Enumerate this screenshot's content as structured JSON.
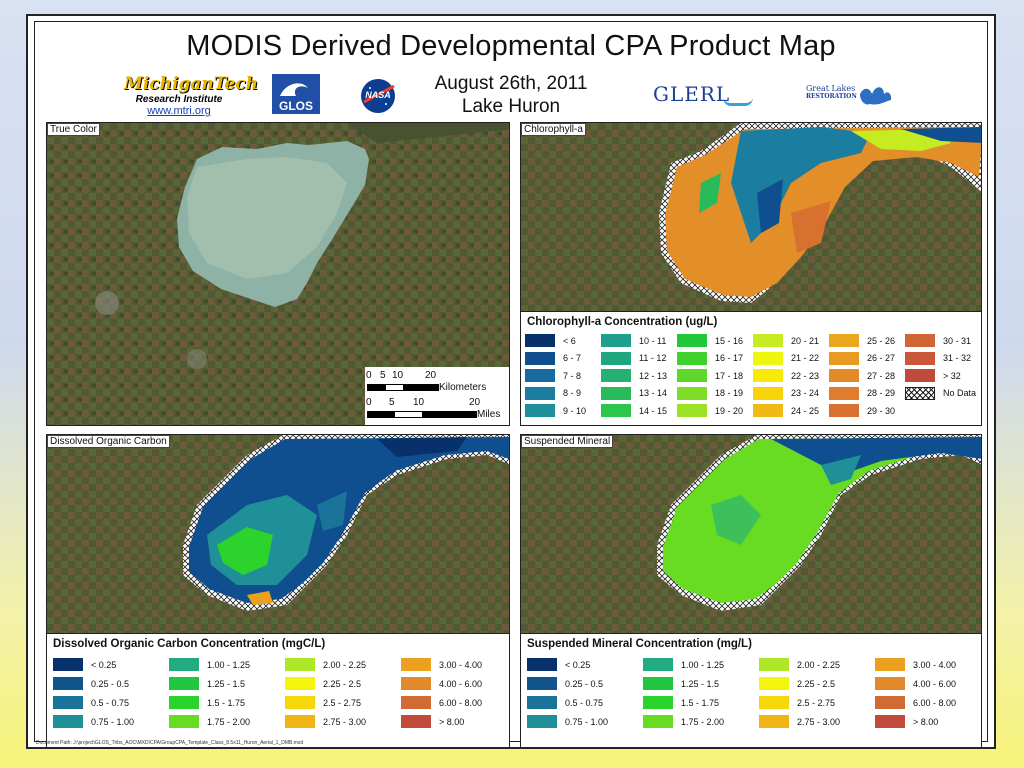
{
  "title": "MODIS Derived Developmental CPA Product Map",
  "date": "August 26th, 2011",
  "lake": "Lake Huron",
  "logos": {
    "mtu_name": "MichiganTech",
    "mtu_sub": "Research Institute",
    "mtu_url": "www.mtri.org",
    "glos": "GLOS",
    "nasa": "NASA",
    "glerl": "GLERL",
    "glri_line1": "Great Lakes",
    "glri_line2": "RESTORATION"
  },
  "panels": {
    "true_color": "True Color",
    "chlorophyll": "Chlorophyll-a",
    "doc": "Dissolved Organic Carbon",
    "sm": "Suspended Mineral"
  },
  "scale": {
    "km_ticks": [
      "0",
      "5",
      "10",
      "20"
    ],
    "km_unit": "Kilometers",
    "mi_ticks": [
      "0",
      "5",
      "10",
      "20"
    ],
    "mi_unit": "Miles"
  },
  "legend_chl": {
    "title": "Chlorophyll-a Concentration (ug/L)",
    "items": [
      {
        "label": "< 6",
        "color": "#08306b"
      },
      {
        "label": "6 - 7",
        "color": "#0f4f8f"
      },
      {
        "label": "7 - 8",
        "color": "#17699f"
      },
      {
        "label": "8 - 9",
        "color": "#1b7d9f"
      },
      {
        "label": "9 - 10",
        "color": "#1f8f9a"
      },
      {
        "label": "10 - 11",
        "color": "#1e9e8d"
      },
      {
        "label": "11 - 12",
        "color": "#1fa67f"
      },
      {
        "label": "12 - 13",
        "color": "#24b070"
      },
      {
        "label": "13 - 14",
        "color": "#28bb5c"
      },
      {
        "label": "14 - 15",
        "color": "#2cc64b"
      },
      {
        "label": "15 - 16",
        "color": "#21c93a"
      },
      {
        "label": "16 - 17",
        "color": "#3fd22e"
      },
      {
        "label": "17 - 18",
        "color": "#5ed62a"
      },
      {
        "label": "18 - 19",
        "color": "#7edd28"
      },
      {
        "label": "19 - 20",
        "color": "#9ee226"
      },
      {
        "label": "20 - 21",
        "color": "#c4ec20"
      },
      {
        "label": "21 - 22",
        "color": "#eef60f"
      },
      {
        "label": "22 - 23",
        "color": "#f8ea08"
      },
      {
        "label": "23 - 24",
        "color": "#f7d40a"
      },
      {
        "label": "24 - 25",
        "color": "#f0b915"
      },
      {
        "label": "25 - 26",
        "color": "#eaa61c"
      },
      {
        "label": "26 - 27",
        "color": "#e99a22"
      },
      {
        "label": "27 - 28",
        "color": "#e38b28"
      },
      {
        "label": "28 - 29",
        "color": "#dd7d2d"
      },
      {
        "label": "29 - 30",
        "color": "#d87030"
      },
      {
        "label": "30 - 31",
        "color": "#d06535"
      },
      {
        "label": "31 - 32",
        "color": "#c95838"
      },
      {
        "label": "> 32",
        "color": "#c04a3a"
      },
      {
        "label": "No Data",
        "color": "hatch"
      }
    ]
  },
  "legend_doc": {
    "title": "Dissolved Organic Carbon Concentration (mgC/L)",
    "items": [
      {
        "label": "< 0.25",
        "color": "#08306b"
      },
      {
        "label": "0.25 - 0.5",
        "color": "#11558f"
      },
      {
        "label": "0.5 - 0.75",
        "color": "#1a749a"
      },
      {
        "label": "0.75 - 1.00",
        "color": "#1f8f98"
      },
      {
        "label": "1.00 - 1.25",
        "color": "#22ab80"
      },
      {
        "label": "1.25 - 1.5",
        "color": "#20c840"
      },
      {
        "label": "1.5 - 1.75",
        "color": "#2bd32c"
      },
      {
        "label": "1.75 - 2.00",
        "color": "#67dc22"
      },
      {
        "label": "2.00 - 2.25",
        "color": "#aee62a"
      },
      {
        "label": "2.25 - 2.5",
        "color": "#f4f40c"
      },
      {
        "label": "2.5 - 2.75",
        "color": "#f5d80a"
      },
      {
        "label": "2.75 - 3.00",
        "color": "#f0b515"
      },
      {
        "label": "3.00 - 4.00",
        "color": "#eba01f"
      },
      {
        "label": "4.00 - 6.00",
        "color": "#e08a2c"
      },
      {
        "label": "6.00 - 8.00",
        "color": "#d26a33"
      },
      {
        "label": "> 8.00",
        "color": "#c24a3a"
      }
    ]
  },
  "legend_sm": {
    "title": "Suspended Mineral Concentration (mg/L)",
    "items": [
      {
        "label": "< 0.25",
        "color": "#08306b"
      },
      {
        "label": "0.25 - 0.5",
        "color": "#11558f"
      },
      {
        "label": "0.5 - 0.75",
        "color": "#1a749a"
      },
      {
        "label": "0.75 - 1.00",
        "color": "#1f8f98"
      },
      {
        "label": "1.00 - 1.25",
        "color": "#22ab80"
      },
      {
        "label": "1.25 - 1.5",
        "color": "#20c840"
      },
      {
        "label": "1.5 - 1.75",
        "color": "#2bd32c"
      },
      {
        "label": "1.75 - 2.00",
        "color": "#67dc22"
      },
      {
        "label": "2.00 - 2.25",
        "color": "#aee62a"
      },
      {
        "label": "2.25 - 2.5",
        "color": "#f4f40c"
      },
      {
        "label": "2.5 - 2.75",
        "color": "#f5d80a"
      },
      {
        "label": "2.75 - 3.00",
        "color": "#f0b515"
      },
      {
        "label": "3.00 - 4.00",
        "color": "#eba01f"
      },
      {
        "label": "4.00 - 6.00",
        "color": "#e08a2c"
      },
      {
        "label": "6.00 - 8.00",
        "color": "#d26a33"
      },
      {
        "label": "> 8.00",
        "color": "#c24a3a"
      }
    ]
  },
  "footer": "Document Path: J:\\project\\GLOS_Tribs_AOC\\MXD\\CPA\\GroupCPA_Template_Class_8.5x11_Huron_Aerial_1_DMB.mxd"
}
